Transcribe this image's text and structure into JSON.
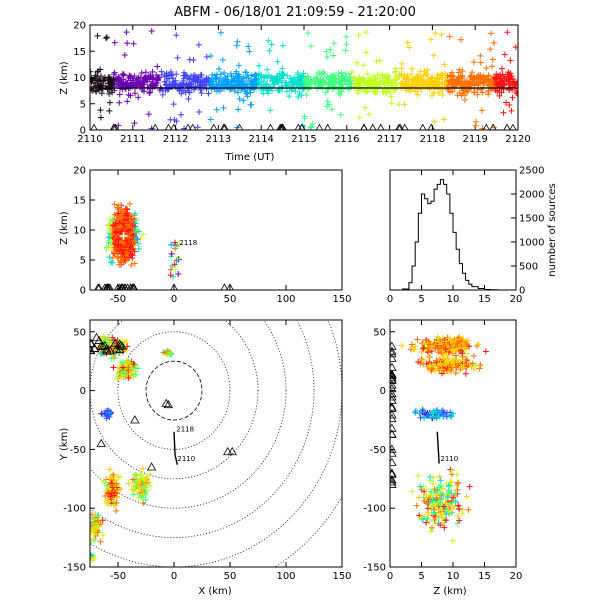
{
  "title": "ABFM - 06/18/01 21:09:59 - 21:20:00",
  "colors": {
    "rainbow": [
      "#1a0a14",
      "#6a00b0",
      "#4040ff",
      "#00a0ff",
      "#00e0d0",
      "#40ff80",
      "#c0ff20",
      "#ffd000",
      "#ff7000",
      "#ff1010"
    ],
    "marker": "#ffffff",
    "axis": "#000000"
  },
  "chart_data": [
    {
      "id": "time-height",
      "type": "scatter",
      "xlabel": "Time (UT)",
      "ylabel": "Z (km)",
      "xlim": [
        2110,
        2120
      ],
      "ylim": [
        0,
        20
      ],
      "xticks": [
        "2110",
        "2111",
        "2112",
        "2113",
        "2114",
        "2115",
        "2116",
        "2117",
        "2118",
        "2119",
        "2120"
      ],
      "yticks": [
        "0",
        "5",
        "10",
        "15",
        "20"
      ],
      "reference_line_z": 8,
      "series": [
        {
          "values_note_free": true,
          "band_z": [
            6,
            12
          ],
          "outlier_z_max": 20
        }
      ]
    },
    {
      "id": "x-height",
      "type": "scatter",
      "xlabel": "",
      "ylabel": "Z (km)",
      "xlim": [
        -75,
        150
      ],
      "ylim": [
        0,
        20
      ],
      "xticks": [
        "-50",
        "0",
        "50",
        "100",
        "150"
      ],
      "yticks": [
        "0",
        "5",
        "10",
        "15",
        "20"
      ],
      "annotation": "2118",
      "annotation_x": 3,
      "annotation_z": 8
    },
    {
      "id": "histogram",
      "type": "line",
      "xlabel": "",
      "ylabel": "number of sources",
      "xlim": [
        0,
        20
      ],
      "ylim": [
        0,
        2500
      ],
      "xticks": [
        "0",
        "5",
        "10",
        "15",
        "20"
      ],
      "yticks": [
        "0",
        "500",
        "1000",
        "1500",
        "2000",
        "2500"
      ],
      "x": [
        0,
        1,
        2,
        3,
        3.5,
        4,
        4.5,
        5,
        5.5,
        6,
        6.5,
        7,
        7.5,
        8,
        8.5,
        9,
        9.5,
        10,
        10.5,
        11,
        11.5,
        12,
        12.5,
        13,
        14,
        15,
        16,
        17,
        18,
        19,
        20
      ],
      "y": [
        0,
        0,
        20,
        150,
        500,
        1000,
        1600,
        2000,
        1900,
        1800,
        1850,
        2100,
        2200,
        2300,
        2200,
        2000,
        1600,
        1200,
        850,
        550,
        350,
        200,
        120,
        70,
        30,
        10,
        5,
        0,
        0,
        0,
        0
      ]
    },
    {
      "id": "plan-view",
      "type": "scatter",
      "xlabel": "X (km)",
      "ylabel": "Y (km)",
      "xlim": [
        -75,
        150
      ],
      "ylim": [
        -150,
        60
      ],
      "xticks": [
        "-50",
        "0",
        "50",
        "100",
        "150"
      ],
      "yticks": [
        "-150",
        "-100",
        "-50",
        "0",
        "50"
      ],
      "range_rings_km": [
        25,
        50,
        75,
        100,
        125,
        150,
        175
      ],
      "track_labels": [
        "2118",
        "2110"
      ],
      "station_triangles": [
        [
          -5,
          -12
        ],
        [
          -7,
          -11
        ],
        [
          -35,
          -25
        ],
        [
          48,
          -52
        ],
        [
          52,
          -52
        ],
        [
          -65,
          -45
        ],
        [
          -20,
          -65
        ]
      ]
    },
    {
      "id": "z-plan",
      "type": "scatter",
      "xlabel": "Z (km)",
      "ylabel": "",
      "xlim": [
        0,
        20
      ],
      "ylim": [
        -150,
        60
      ],
      "xticks": [
        "0",
        "5",
        "10",
        "15",
        "20"
      ],
      "yticks": [
        "-150",
        "-100",
        "-50",
        "0",
        "50"
      ],
      "track_labels": [
        "2110"
      ]
    }
  ]
}
